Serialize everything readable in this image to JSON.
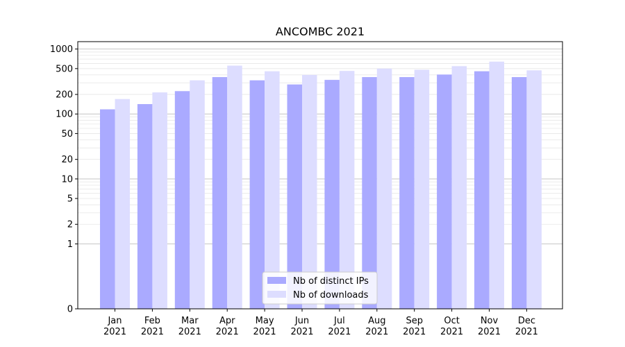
{
  "chart_data": {
    "type": "bar",
    "title": "ANCOMBC 2021",
    "xlabel": "",
    "ylabel": "",
    "yscale": "symlog",
    "ylim": [
      0,
      1300
    ],
    "yticks": [
      0,
      1,
      2,
      5,
      10,
      20,
      50,
      100,
      200,
      500,
      1000
    ],
    "grid": "y, major and minor",
    "legend_position": "bottom-center",
    "categories": [
      [
        "Jan",
        "2021"
      ],
      [
        "Feb",
        "2021"
      ],
      [
        "Mar",
        "2021"
      ],
      [
        "Apr",
        "2021"
      ],
      [
        "May",
        "2021"
      ],
      [
        "Jun",
        "2021"
      ],
      [
        "Jul",
        "2021"
      ],
      [
        "Aug",
        "2021"
      ],
      [
        "Sep",
        "2021"
      ],
      [
        "Oct",
        "2021"
      ],
      [
        "Nov",
        "2021"
      ],
      [
        "Dec",
        "2021"
      ]
    ],
    "series": [
      {
        "name": "Nb of distinct IPs",
        "color": "#aaaaff",
        "values": [
          118,
          142,
          225,
          370,
          330,
          285,
          335,
          370,
          370,
          405,
          455,
          370
        ]
      },
      {
        "name": "Nb of downloads",
        "color": "#ddddff",
        "values": [
          170,
          215,
          330,
          555,
          455,
          400,
          460,
          500,
          480,
          545,
          640,
          470
        ]
      }
    ]
  }
}
